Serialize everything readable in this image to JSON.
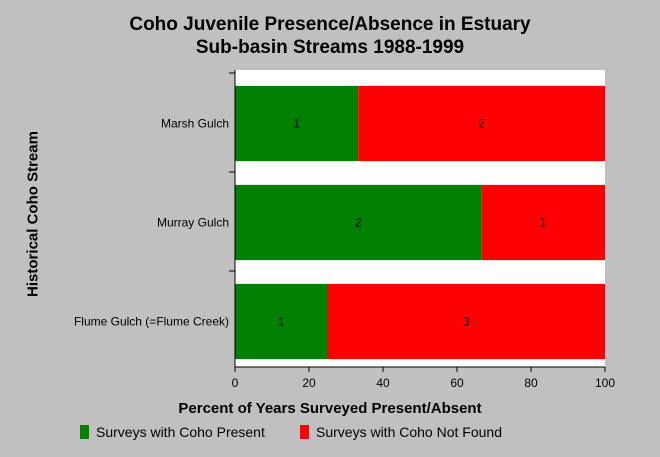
{
  "chart_data": {
    "type": "bar",
    "orientation": "horizontal",
    "stacked": true,
    "title": [
      "Coho Juvenile Presence/Absence in Estuary",
      "Sub-basin Streams 1988-1999"
    ],
    "xlabel": "Percent of Years Surveyed Present/Absent",
    "ylabel": "Historical Coho Stream",
    "xlim": [
      0,
      100
    ],
    "xticks": [
      0,
      20,
      40,
      60,
      80,
      100
    ],
    "categories": [
      "Marsh Gulch",
      "Murray Gulch",
      "Flume Gulch (=Flume Creek)"
    ],
    "series": [
      {
        "name": "Surveys with Coho Present",
        "color": "#008000",
        "values": [
          33.3,
          66.7,
          25
        ],
        "labels": [
          "1",
          "2",
          "1"
        ]
      },
      {
        "name": "Surveys with Coho Not Found",
        "color": "#ff0000",
        "values": [
          66.7,
          33.3,
          75
        ],
        "labels": [
          "2",
          "1",
          "3"
        ]
      }
    ],
    "grid": false,
    "legend_position": "bottom"
  }
}
